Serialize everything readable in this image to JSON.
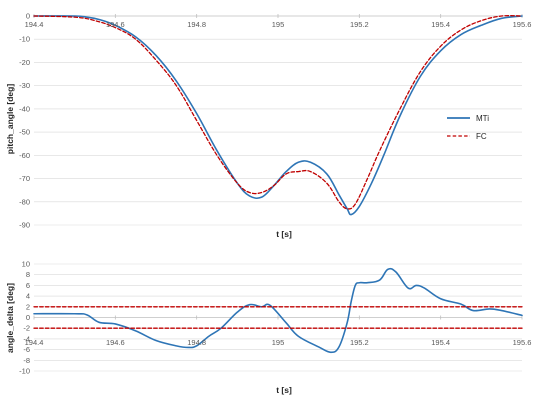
{
  "chart_data": [
    {
      "type": "line",
      "title": "",
      "xlabel": "t [s]",
      "ylabel": "pitch_angle [deg]",
      "xlim": [
        194.4,
        195.6
      ],
      "ylim": [
        -90,
        0
      ],
      "x_ticks": [
        "194.4",
        "194.6",
        "194.8",
        "195",
        "195.2",
        "195.4",
        "195.6"
      ],
      "y_ticks": [
        "0",
        "-10",
        "-20",
        "-30",
        "-40",
        "-50",
        "-60",
        "-70",
        "-80",
        "-90"
      ],
      "legend_position": "right",
      "grid": true,
      "series": [
        {
          "name": "MTi",
          "color": "#2e75b6",
          "dash": "solid",
          "x": [
            194.4,
            194.5,
            194.53,
            194.56,
            194.6,
            194.65,
            194.7,
            194.75,
            194.8,
            194.85,
            194.9,
            194.93,
            194.96,
            194.99,
            195.02,
            195.05,
            195.08,
            195.12,
            195.15,
            195.17,
            195.18,
            195.2,
            195.23,
            195.26,
            195.3,
            195.35,
            195.4,
            195.45,
            195.5,
            195.55,
            195.6
          ],
          "y": [
            0,
            0,
            -0.5,
            -1.5,
            -4,
            -9,
            -17,
            -28,
            -42,
            -58,
            -72,
            -77.5,
            -78,
            -73,
            -67,
            -63,
            -63,
            -68,
            -77,
            -83,
            -85.5,
            -82,
            -72,
            -60,
            -43,
            -26,
            -15,
            -8,
            -4,
            -1,
            0
          ]
        },
        {
          "name": "FC",
          "color": "#c00000",
          "dash": "dashed",
          "x": [
            194.4,
            194.5,
            194.55,
            194.6,
            194.65,
            194.7,
            194.75,
            194.8,
            194.85,
            194.9,
            194.93,
            194.96,
            194.99,
            195.02,
            195.05,
            195.08,
            195.12,
            195.15,
            195.17,
            195.19,
            195.22,
            195.25,
            195.3,
            195.35,
            195.4,
            195.45,
            195.5,
            195.55,
            195.6
          ],
          "y": [
            0,
            -0.5,
            -2,
            -5,
            -10,
            -19,
            -30,
            -45,
            -60,
            -72,
            -76,
            -76,
            -73,
            -68,
            -67,
            -67,
            -72,
            -80,
            -83,
            -81,
            -70,
            -58,
            -40,
            -24,
            -13,
            -6,
            -2,
            0,
            0
          ]
        }
      ]
    },
    {
      "type": "line",
      "title": "",
      "xlabel": "t [s]",
      "ylabel": "angle_delta [deg]",
      "xlim": [
        194.4,
        195.6
      ],
      "ylim": [
        -10,
        10
      ],
      "x_ticks": [
        "194.4",
        "194.6",
        "194.8",
        "195",
        "195.2",
        "195.4",
        "195.6"
      ],
      "y_ticks": [
        "10",
        "8",
        "6",
        "4",
        "2",
        "0",
        "-2",
        "-4",
        "-6",
        "-8",
        "-10"
      ],
      "grid": true,
      "series": [
        {
          "color": "#2e75b6",
          "dash": "solid",
          "x": [
            194.4,
            194.5,
            194.53,
            194.56,
            194.6,
            194.65,
            194.7,
            194.75,
            194.78,
            194.8,
            194.83,
            194.86,
            194.9,
            194.93,
            194.96,
            194.98,
            195.02,
            195.05,
            195.1,
            195.13,
            195.15,
            195.17,
            195.18,
            195.19,
            195.2,
            195.22,
            195.25,
            195.27,
            195.29,
            195.32,
            195.34,
            195.36,
            195.4,
            195.45,
            195.48,
            195.52,
            195.55,
            195.6
          ],
          "y": [
            0.7,
            0.7,
            0.5,
            -0.9,
            -1.2,
            -2.5,
            -4.3,
            -5.3,
            -5.6,
            -5.3,
            -3.5,
            -2,
            1,
            2.4,
            2,
            2.3,
            -1,
            -3.5,
            -5.5,
            -6.5,
            -5.5,
            -1,
            3,
            6,
            6.5,
            6.5,
            7,
            9,
            8.5,
            5.5,
            6,
            5.5,
            3.5,
            2.5,
            1.3,
            1.6,
            1.3,
            0.4
          ]
        },
        {
          "color": "#c00000",
          "dash": "dashed",
          "x": [
            194.4,
            195.6
          ],
          "y": [
            2,
            2
          ]
        },
        {
          "color": "#c00000",
          "dash": "dashed",
          "x": [
            194.4,
            195.6
          ],
          "y": [
            -2,
            -2
          ]
        }
      ]
    }
  ]
}
